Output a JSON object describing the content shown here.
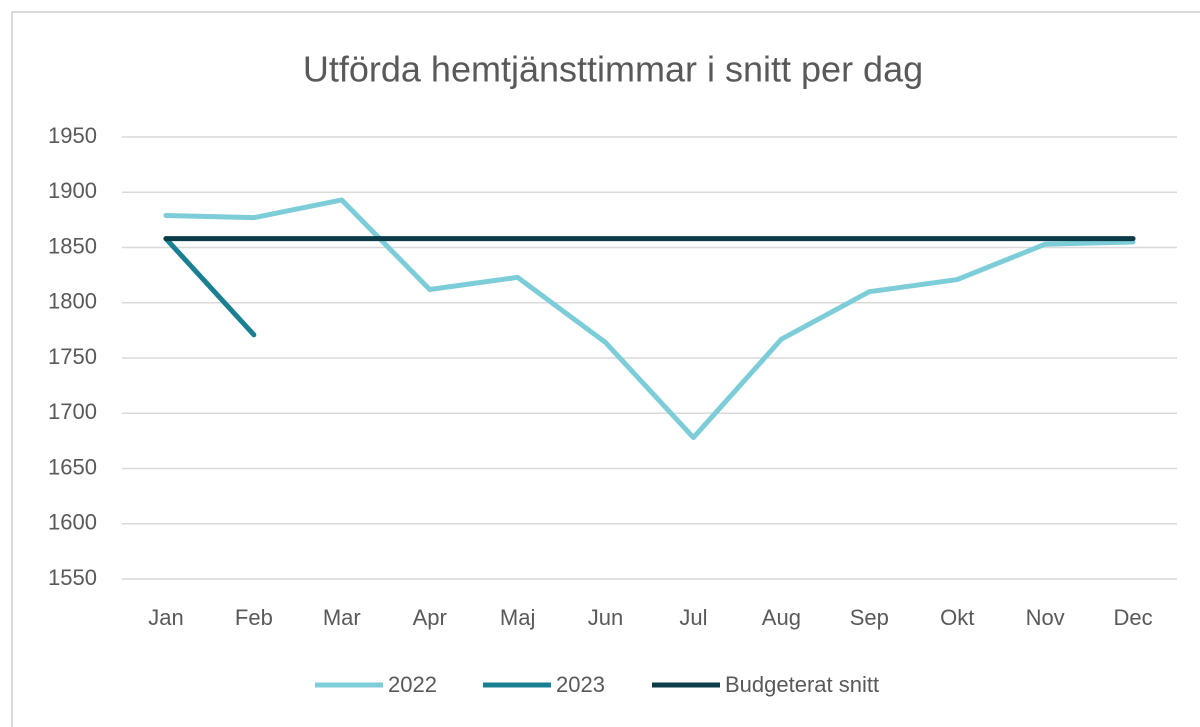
{
  "chart_data": {
    "type": "line",
    "title": "Utförda hemtjänsttimmar i snitt per dag",
    "categories": [
      "Jan",
      "Feb",
      "Mar",
      "Apr",
      "Maj",
      "Jun",
      "Jul",
      "Aug",
      "Sep",
      "Okt",
      "Nov",
      "Dec"
    ],
    "series": [
      {
        "name": "2022",
        "color": "#7ccdd7",
        "values": [
          1879,
          1877,
          1893,
          1812,
          1823,
          1764,
          1678,
          1767,
          1810,
          1821,
          1853,
          1855
        ]
      },
      {
        "name": "2023",
        "color": "#1b7f92",
        "values": [
          1858,
          1771,
          null,
          null,
          null,
          null,
          null,
          null,
          null,
          null,
          null,
          null
        ]
      },
      {
        "name": "Budgeterat snitt",
        "color": "#0b3d48",
        "values": [
          1858,
          1858,
          1858,
          1858,
          1858,
          1858,
          1858,
          1858,
          1858,
          1858,
          1858,
          1858
        ]
      }
    ],
    "ylim": [
      1550,
      1950
    ],
    "yticks": [
      1550,
      1600,
      1650,
      1700,
      1750,
      1800,
      1850,
      1900,
      1950
    ],
    "grid": true,
    "legend": "bottom"
  }
}
